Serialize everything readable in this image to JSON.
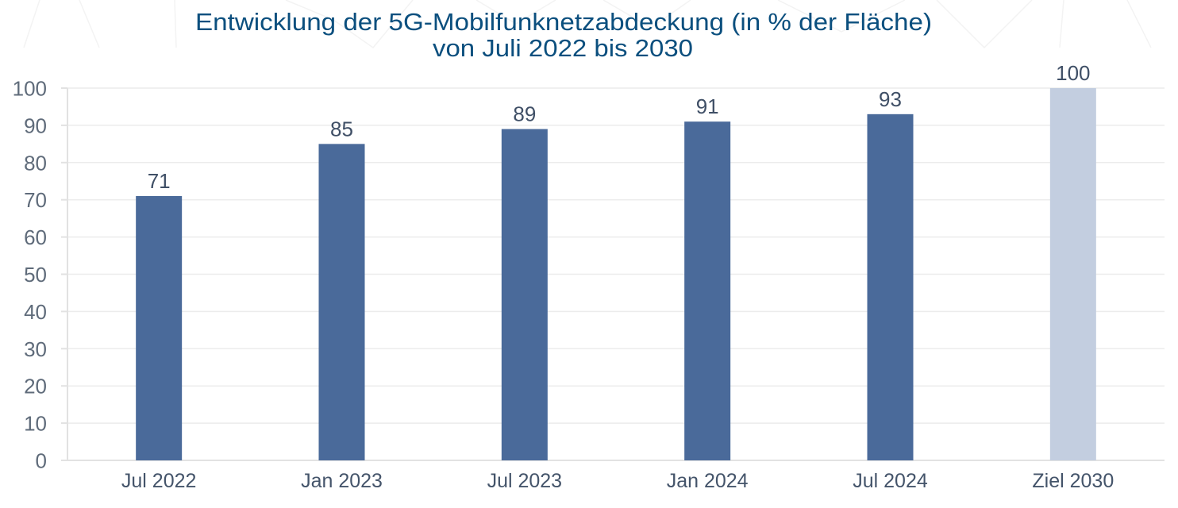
{
  "chart_data": {
    "type": "bar",
    "title": "Entwicklung der 5G-Mobilfunknetzabdeckung (in % der Fläche)",
    "subtitle": "von Juli 2022 bis 2030",
    "xlabel": "",
    "ylabel": "",
    "ylim": [
      0,
      100
    ],
    "yticks": [
      0,
      10,
      20,
      30,
      40,
      50,
      60,
      70,
      80,
      90,
      100
    ],
    "grid": true,
    "legend": "none",
    "categories": [
      "Jul 2022",
      "Jan 2023",
      "Jul 2023",
      "Jan 2024",
      "Jul 2024",
      "Ziel 2030"
    ],
    "values": [
      71,
      85,
      89,
      91,
      93,
      100
    ],
    "data_labels": [
      "71",
      "85",
      "89",
      "91",
      "93",
      "100"
    ],
    "bar_kinds": [
      "actual",
      "actual",
      "actual",
      "actual",
      "actual",
      "target"
    ]
  },
  "colors": {
    "actual": "#4a6a9a",
    "target": "#c3cee0",
    "title": "#0b4f7e"
  }
}
